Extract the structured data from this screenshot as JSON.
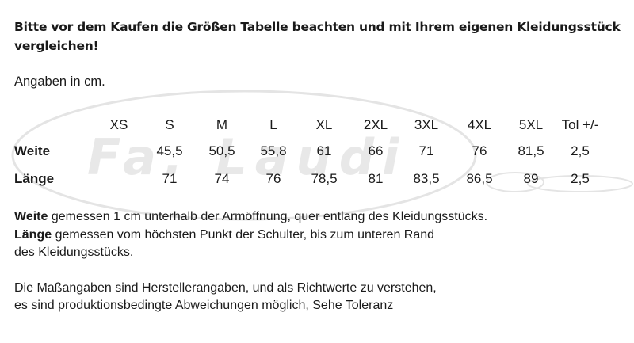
{
  "heading": "Bitte vor dem Kaufen die Größen Tabelle beachten und mit Ihrem eigenen Kleidungsstück vergleichen!",
  "units_note": "Angaben in cm.",
  "watermark_text": "Fa. Laudi",
  "table": {
    "sizes": [
      "XS",
      "S",
      "M",
      "L",
      "XL",
      "2XL",
      "3XL",
      "4XL",
      "5XL",
      "Tol +/-"
    ],
    "rows": [
      {
        "label": "Weite",
        "values": [
          "",
          "45,5",
          "50,5",
          "55,8",
          "61",
          "66",
          "71",
          "76",
          "81,5",
          "2,5"
        ]
      },
      {
        "label": "Länge",
        "values": [
          "",
          "71",
          "74",
          "76",
          "78,5",
          "81",
          "83,5",
          "86,5",
          "89",
          "2,5"
        ]
      }
    ]
  },
  "notes": {
    "weite_keyword": "Weite",
    "weite_text": " gemessen 1 cm unterhalb der Armöffnung, quer entlang des Kleidungsstücks.",
    "laenge_keyword": "Länge",
    "laenge_text": " gemessen vom höchsten Punkt der Schulter, bis zum unteren Rand",
    "laenge_text_2": "des Kleidungsstücks.",
    "disclaimer_1": "Die Maßangaben sind Herstellerangaben, und als Richtwerte zu verstehen,",
    "disclaimer_2": "es sind produktionsbedingte Abweichungen möglich, Sehe Toleranz"
  }
}
